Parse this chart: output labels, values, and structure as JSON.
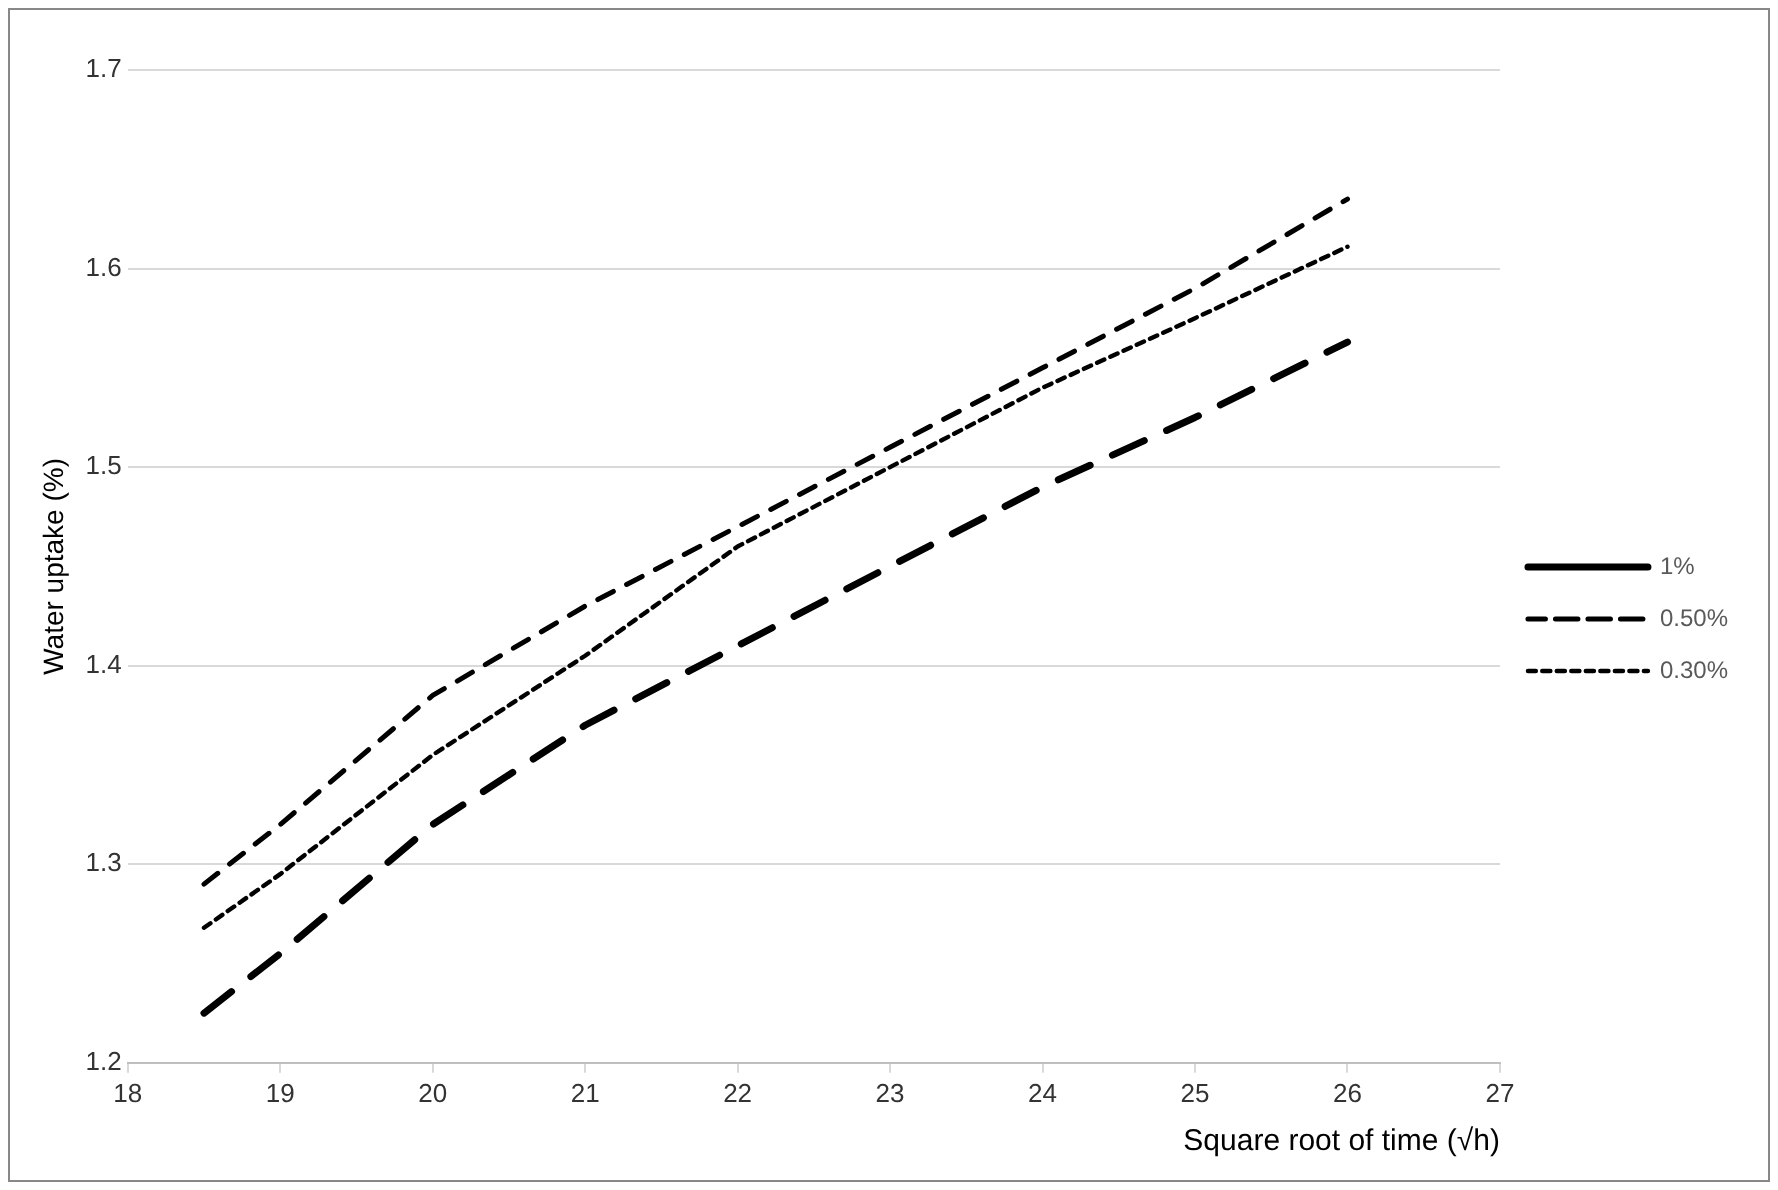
{
  "chart_data": {
    "type": "line",
    "xlabel": "Square root of time (√h)",
    "ylabel": "Water uptake (%)",
    "xlim": [
      18,
      27
    ],
    "xticks": [
      18,
      19,
      20,
      21,
      22,
      23,
      24,
      25,
      26,
      27
    ],
    "ylim": [
      1.2,
      1.7
    ],
    "yticks": [
      1.2,
      1.3,
      1.4,
      1.5,
      1.6,
      1.7
    ],
    "grid": "y",
    "legend": "right",
    "marker": "none",
    "x": [
      18.5,
      19,
      20,
      21,
      22,
      23,
      24,
      25,
      26
    ],
    "series": [
      {
        "name": "1%",
        "color": "#000000",
        "line_style": "dashed",
        "values": [
          1.225,
          1.255,
          1.32,
          1.37,
          1.41,
          1.45,
          1.49,
          1.525,
          1.563
        ]
      },
      {
        "name": "0.50%",
        "color": "#000000",
        "line_style": "dashed",
        "values": [
          1.29,
          1.32,
          1.385,
          1.43,
          1.47,
          1.51,
          1.55,
          1.59,
          1.635
        ]
      },
      {
        "name": "0.30%",
        "color": "#000000",
        "line_style": "dotted",
        "values": [
          1.268,
          1.295,
          1.355,
          1.405,
          1.46,
          1.5,
          1.54,
          1.575,
          1.611
        ]
      }
    ]
  }
}
